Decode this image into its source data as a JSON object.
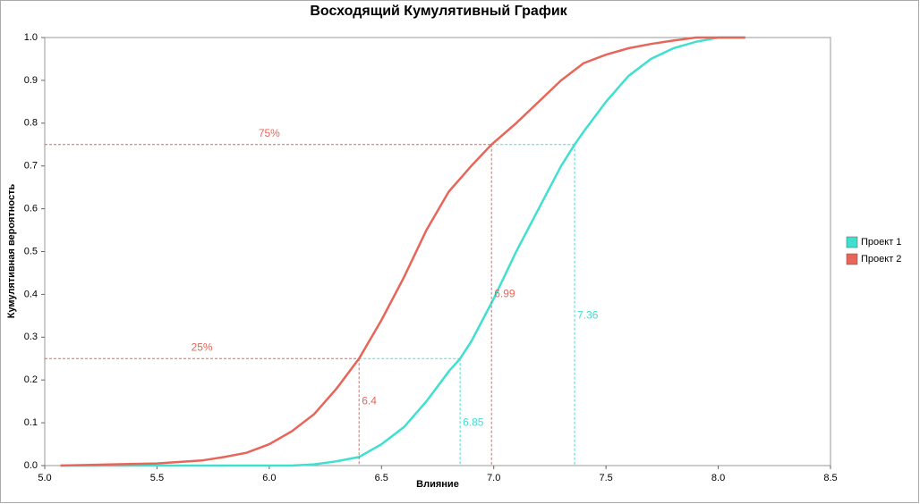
{
  "chart_data": {
    "type": "line",
    "title": "Восходящий Кумулятивный График",
    "x_label": "Влияние",
    "y_label": "Кумулятивная вероятность",
    "xlim": [
      5.0,
      8.5
    ],
    "ylim": [
      0,
      1
    ],
    "xticks": [
      {
        "value": 5,
        "label": "5.0"
      },
      5.5,
      {
        "value": 6,
        "label": "6.0"
      },
      6.5,
      {
        "value": 7,
        "label": "7.0"
      },
      7.5,
      {
        "value": 8,
        "label": "8.0"
      },
      8.5
    ],
    "yticks": [
      {
        "value": 0,
        "label": "0.0"
      },
      0.1,
      0.2,
      0.3,
      0.4,
      0.5,
      0.6,
      0.7,
      0.8,
      0.9,
      {
        "value": 1,
        "label": "1.0"
      }
    ],
    "legend": "right",
    "series": [
      {
        "name": "Проект 1",
        "color": "#40e0d0",
        "x": [
          5.07,
          6.1,
          6.2,
          6.3,
          6.4,
          6.5,
          6.6,
          6.7,
          6.8,
          6.85,
          6.9,
          7.0,
          7.1,
          7.2,
          7.3,
          7.36,
          7.4,
          7.5,
          7.6,
          7.7,
          7.8,
          7.9,
          8.0,
          8.12
        ],
        "values": [
          0,
          0,
          0.003,
          0.01,
          0.02,
          0.05,
          0.09,
          0.15,
          0.22,
          0.25,
          0.29,
          0.39,
          0.5,
          0.6,
          0.7,
          0.75,
          0.78,
          0.85,
          0.91,
          0.95,
          0.975,
          0.99,
          1.0,
          1.0
        ]
      },
      {
        "name": "Проект 2",
        "color": "#e8655a",
        "x": [
          5.07,
          5.25,
          5.5,
          5.7,
          5.8,
          5.9,
          6.0,
          6.1,
          6.2,
          6.3,
          6.4,
          6.5,
          6.6,
          6.7,
          6.8,
          6.9,
          6.99,
          7.1,
          7.2,
          7.3,
          7.4,
          7.5,
          7.6,
          7.7,
          7.8,
          7.9,
          8.12
        ],
        "values": [
          0,
          0.002,
          0.005,
          0.012,
          0.02,
          0.03,
          0.05,
          0.08,
          0.12,
          0.18,
          0.25,
          0.34,
          0.44,
          0.55,
          0.64,
          0.7,
          0.75,
          0.8,
          0.85,
          0.9,
          0.94,
          0.96,
          0.975,
          0.985,
          0.993,
          1.0,
          1.0
        ]
      }
    ],
    "percentiles": [
      {
        "value": 0.25,
        "label": "25%"
      },
      {
        "value": 0.75,
        "label": "75%"
      }
    ],
    "markers": [
      {
        "series": 1,
        "x": 6.4,
        "y": 0.25
      },
      {
        "series": 0,
        "x": 6.85,
        "y": 0.25
      },
      {
        "series": 1,
        "x": 6.99,
        "y": 0.75
      },
      {
        "series": 0,
        "x": 7.36,
        "y": 0.75
      }
    ]
  }
}
